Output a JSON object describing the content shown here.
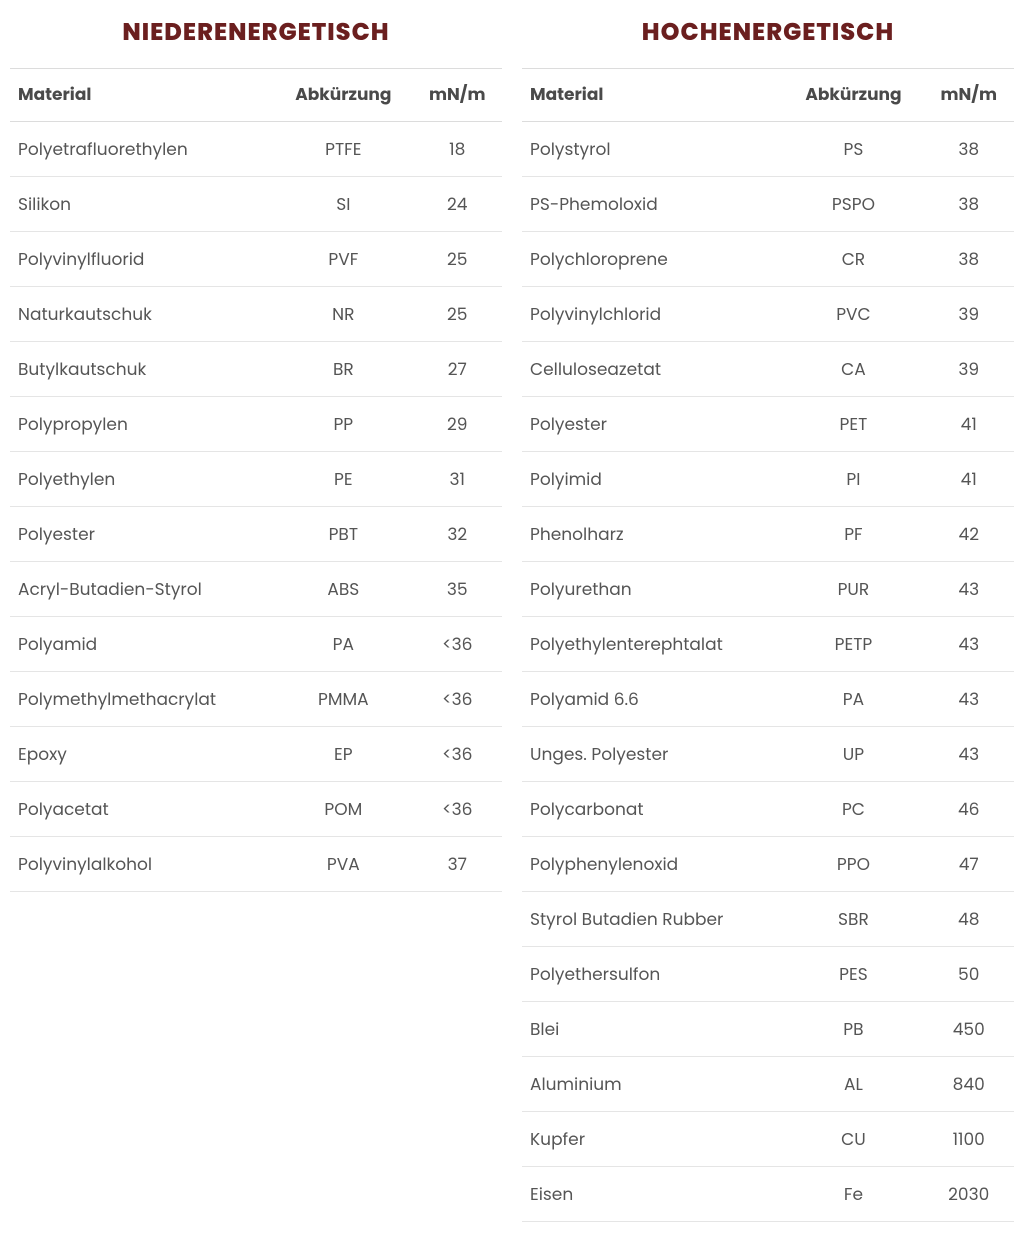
{
  "titles": {
    "left": "NIEDERENERGETISCH",
    "right": "HOCHENERGETISCH"
  },
  "headers": {
    "material": "Material",
    "abbr": "Abkürzung",
    "unit": "mN/m"
  },
  "leftRows": [
    {
      "material": "Polyetrafluorethylen",
      "abbr": "PTFE",
      "value": "18"
    },
    {
      "material": "Silikon",
      "abbr": "SI",
      "value": "24"
    },
    {
      "material": "Polyvinylfluorid",
      "abbr": "PVF",
      "value": "25"
    },
    {
      "material": "Naturkautschuk",
      "abbr": "NR",
      "value": "25"
    },
    {
      "material": "Butylkautschuk",
      "abbr": "BR",
      "value": "27"
    },
    {
      "material": "Polypropylen",
      "abbr": "PP",
      "value": "29"
    },
    {
      "material": "Polyethylen",
      "abbr": "PE",
      "value": "31"
    },
    {
      "material": "Polyester",
      "abbr": "PBT",
      "value": "32"
    },
    {
      "material": "Acryl-Butadien-Styrol",
      "abbr": "ABS",
      "value": "35"
    },
    {
      "material": "Polyamid",
      "abbr": "PA",
      "value": "<36"
    },
    {
      "material": "Polymethylmethacrylat",
      "abbr": "PMMA",
      "value": "<36"
    },
    {
      "material": "Epoxy",
      "abbr": "EP",
      "value": "<36"
    },
    {
      "material": "Polyacetat",
      "abbr": "POM",
      "value": "<36"
    },
    {
      "material": "Polyvinylalkohol",
      "abbr": "PVA",
      "value": "37"
    }
  ],
  "rightRows": [
    {
      "material": "Polystyrol",
      "abbr": "PS",
      "value": "38"
    },
    {
      "material": "PS-Phemoloxid",
      "abbr": "PSPO",
      "value": "38"
    },
    {
      "material": "Polychloroprene",
      "abbr": "CR",
      "value": "38"
    },
    {
      "material": "Polyvinylchlorid",
      "abbr": "PVC",
      "value": "39"
    },
    {
      "material": "Celluloseazetat",
      "abbr": "CA",
      "value": "39"
    },
    {
      "material": "Polyester",
      "abbr": "PET",
      "value": "41"
    },
    {
      "material": "Polyimid",
      "abbr": "PI",
      "value": "41"
    },
    {
      "material": "Phenolharz",
      "abbr": "PF",
      "value": "42"
    },
    {
      "material": "Polyurethan",
      "abbr": "PUR",
      "value": "43"
    },
    {
      "material": "Polyethylenterephtalat",
      "abbr": "PETP",
      "value": "43"
    },
    {
      "material": "Polyamid 6.6",
      "abbr": "PA",
      "value": "43"
    },
    {
      "material": "Unges. Polyester",
      "abbr": "UP",
      "value": "43"
    },
    {
      "material": "Polycarbonat",
      "abbr": "PC",
      "value": "46"
    },
    {
      "material": "Polyphenylenoxid",
      "abbr": "PPO",
      "value": "47"
    },
    {
      "material": "Styrol Butadien Rubber",
      "abbr": "SBR",
      "value": "48"
    },
    {
      "material": "Polyethersulfon",
      "abbr": "PES",
      "value": "50"
    },
    {
      "material": "Blei",
      "abbr": "PB",
      "value": "450"
    },
    {
      "material": "Aluminium",
      "abbr": "AL",
      "value": "840"
    },
    {
      "material": "Kupfer",
      "abbr": "CU",
      "value": "1100"
    },
    {
      "material": "Eisen",
      "abbr": "Fe",
      "value": "2030"
    }
  ]
}
